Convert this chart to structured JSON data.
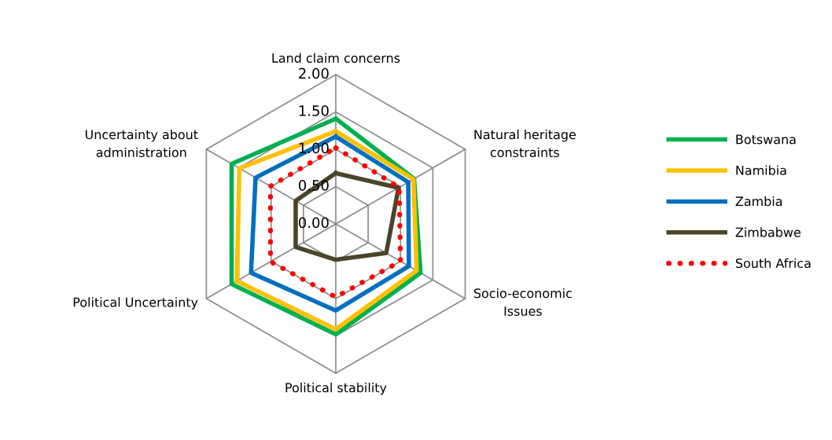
{
  "chart_data": {
    "type": "radar",
    "categories": [
      "Land claim concerns",
      "Natural heritage constraints",
      "Socio-economic Issues",
      "Political stability",
      "Political Uncertainty",
      "Uncertainty about administration"
    ],
    "ylim": [
      0,
      2
    ],
    "yticks": [
      {
        "value": 0,
        "label": "0.00"
      },
      {
        "value": 0.5,
        "label": "0.50"
      },
      {
        "value": 1,
        "label": "1.00"
      },
      {
        "value": 1.5,
        "label": "1.50"
      },
      {
        "value": 2,
        "label": "2.00"
      }
    ],
    "legend": "right",
    "grid": true,
    "series": [
      {
        "name": "Botswana",
        "color": "#00b050",
        "values": [
          1.41,
          1.21,
          1.31,
          1.48,
          1.61,
          1.61
        ]
      },
      {
        "name": "Namibia",
        "color": "#ffc000",
        "values": [
          1.24,
          1.2,
          1.25,
          1.41,
          1.53,
          1.49
        ]
      },
      {
        "name": "Zambia",
        "color": "#0070c0",
        "values": [
          1.17,
          1.12,
          1.13,
          1.16,
          1.31,
          1.24
        ]
      },
      {
        "name": "Zimbabwe",
        "color": "#4a452a",
        "values": [
          0.68,
          0.97,
          0.78,
          0.48,
          0.62,
          0.62
        ]
      },
      {
        "name": "South Africa",
        "color": "#ff0000",
        "line_style": "dotted",
        "values": [
          1.02,
          0.98,
          1.0,
          0.98,
          1.01,
          1.01
        ]
      }
    ]
  }
}
